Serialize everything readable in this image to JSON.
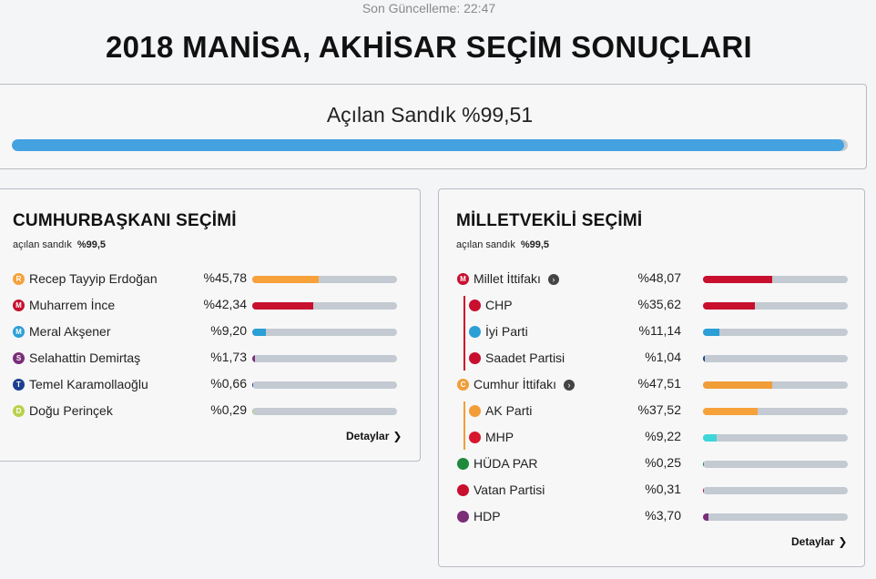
{
  "header": {
    "updated": "Son Güncelleme: 22:47",
    "title": "2018 MANİSA, AKHİSAR SEÇİM SONUÇLARI"
  },
  "ballot": {
    "label": "Açılan Sandık %99,51",
    "progress_percent": 99.51
  },
  "presidential": {
    "title": "CUMHURBAŞKANI SEÇİMİ",
    "sub_label": "açılan sandık",
    "sub_value": "%99,5",
    "details_label": "Detaylar",
    "candidates": [
      {
        "name": "Recep Tayyip Erdoğan",
        "pct": "%45,78",
        "value": 45.78,
        "badge": "R",
        "color": "#f6a13a"
      },
      {
        "name": "Muharrem İnce",
        "pct": "%42,34",
        "value": 42.34,
        "badge": "M",
        "color": "#c80f2e"
      },
      {
        "name": "Meral Akşener",
        "pct": "%9,20",
        "value": 9.2,
        "badge": "M",
        "color": "#2b9fd6"
      },
      {
        "name": "Selahattin Demirtaş",
        "pct": "%1,73",
        "value": 1.73,
        "badge": "S",
        "color": "#7b2d78"
      },
      {
        "name": "Temel Karamollaoğlu",
        "pct": "%0,66",
        "value": 0.66,
        "badge": "T",
        "color": "#1c3f8f"
      },
      {
        "name": "Doğu Perinçek",
        "pct": "%0,29",
        "value": 0.29,
        "badge": "D",
        "color": "#b7d14a"
      }
    ]
  },
  "parliament": {
    "title": "MİLLETVEKİLİ SEÇİMİ",
    "sub_label": "açılan sandık",
    "sub_value": "%99,5",
    "details_label": "Detaylar",
    "parties": [
      {
        "name": "Millet İttifakı",
        "pct": "%48,07",
        "value": 48.07,
        "badge": "M",
        "badge_color": "#c80f2e",
        "bar_color": "#c80f2e",
        "indent": false,
        "info": true,
        "icon": "millet-alliance-icon"
      },
      {
        "name": "CHP",
        "pct": "%35,62",
        "value": 35.62,
        "badge": "",
        "badge_color": "#c80f2e",
        "bar_color": "#c80f2e",
        "indent": true,
        "info": false,
        "icon": "chp-logo-icon"
      },
      {
        "name": "İyi Parti",
        "pct": "%11,14",
        "value": 11.14,
        "badge": "",
        "badge_color": "#2b9fd6",
        "bar_color": "#2b9fd6",
        "indent": true,
        "info": false,
        "icon": "iyi-parti-logo-icon"
      },
      {
        "name": "Saadet Partisi",
        "pct": "%1,04",
        "value": 1.04,
        "badge": "",
        "badge_color": "#c80f2e",
        "bar_color": "#1c3f8f",
        "indent": true,
        "info": false,
        "icon": "saadet-logo-icon"
      },
      {
        "name": "Cumhur İttifakı",
        "pct": "%47,51",
        "value": 47.51,
        "badge": "C",
        "badge_color": "#f19d38",
        "bar_color": "#f19d38",
        "indent": false,
        "info": true,
        "icon": "cumhur-alliance-icon"
      },
      {
        "name": "AK Parti",
        "pct": "%37,52",
        "value": 37.52,
        "badge": "",
        "badge_color": "#f19d38",
        "bar_color": "#f6a13a",
        "indent": true,
        "info": false,
        "icon": "ak-parti-logo-icon"
      },
      {
        "name": "MHP",
        "pct": "%9,22",
        "value": 9.22,
        "badge": "",
        "badge_color": "#d7172f",
        "bar_color": "#3fd6d9",
        "indent": true,
        "info": false,
        "icon": "mhp-logo-icon"
      },
      {
        "name": "HÜDA PAR",
        "pct": "%0,25",
        "value": 0.25,
        "badge": "",
        "badge_color": "#1f8a3b",
        "bar_color": "#1f8a3b",
        "indent": false,
        "info": false,
        "icon": "huda-par-logo-icon"
      },
      {
        "name": "Vatan Partisi",
        "pct": "%0,31",
        "value": 0.31,
        "badge": "",
        "badge_color": "#c80f2e",
        "bar_color": "#c80f2e",
        "indent": false,
        "info": false,
        "icon": "vatan-logo-icon"
      },
      {
        "name": "HDP",
        "pct": "%3,70",
        "value": 3.7,
        "badge": "",
        "badge_color": "#7b2d78",
        "bar_color": "#7b2d78",
        "indent": false,
        "info": false,
        "icon": "hdp-logo-icon"
      }
    ]
  }
}
